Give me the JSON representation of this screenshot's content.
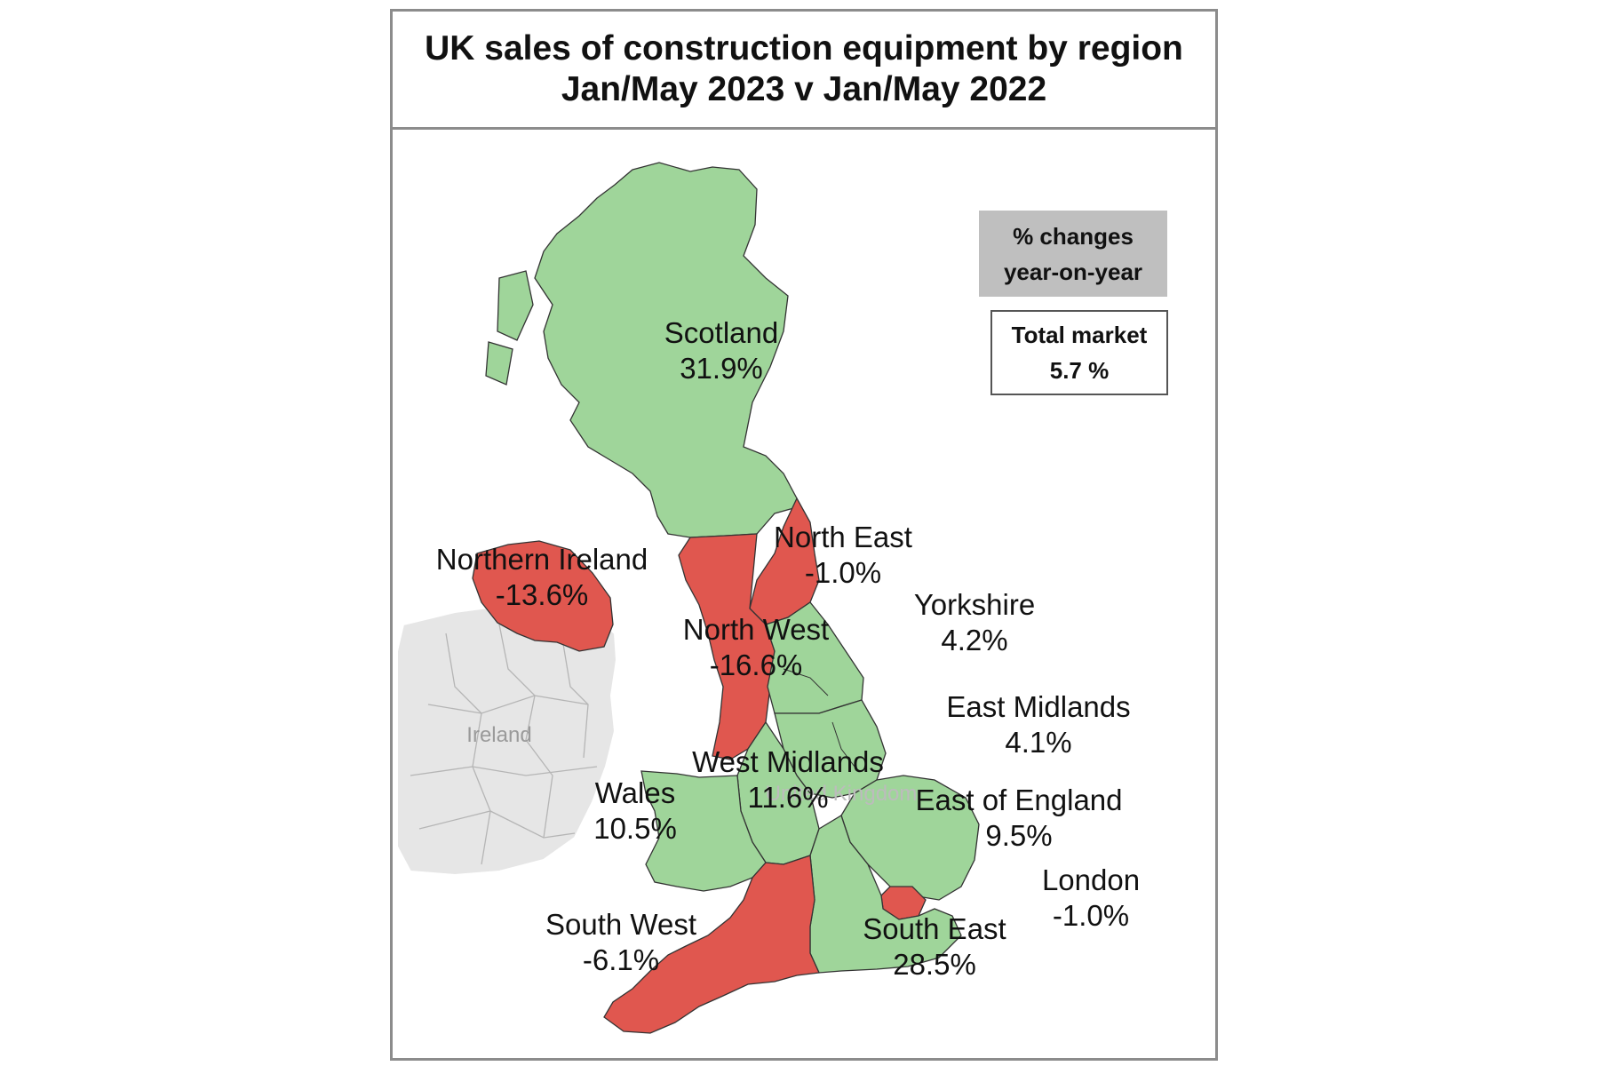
{
  "title": {
    "line1": "UK sales of construction equipment by region",
    "line2": "Jan/May 2023  v  Jan/May 2022"
  },
  "legend": {
    "line1": "% changes",
    "line2": "year-on-year"
  },
  "total": {
    "label": "Total market",
    "value": "5.7 %"
  },
  "colors": {
    "increase": "#9fd59a",
    "decrease": "#e0574f",
    "background_country": "#e6e6e6"
  },
  "basemap": {
    "ireland": "Ireland",
    "uk": "United Kingdom"
  },
  "regions": [
    {
      "name": "Scotland",
      "change": "31.9%",
      "direction": "increase"
    },
    {
      "name": "North East",
      "change": "-1.0%",
      "direction": "decrease"
    },
    {
      "name": "Northern Ireland",
      "change": "-13.6%",
      "direction": "decrease"
    },
    {
      "name": "Yorkshire",
      "change": "4.2%",
      "direction": "increase"
    },
    {
      "name": "North West",
      "change": "-16.6%",
      "direction": "decrease"
    },
    {
      "name": "East Midlands",
      "change": "4.1%",
      "direction": "increase"
    },
    {
      "name": "West Midlands",
      "change": "11.6%",
      "direction": "increase"
    },
    {
      "name": "Wales",
      "change": "10.5%",
      "direction": "increase"
    },
    {
      "name": "East of England",
      "change": "9.5%",
      "direction": "increase"
    },
    {
      "name": "London",
      "change": "-1.0%",
      "direction": "decrease"
    },
    {
      "name": "South West",
      "change": "-6.1%",
      "direction": "decrease"
    },
    {
      "name": "South East",
      "change": "28.5%",
      "direction": "increase"
    }
  ]
}
